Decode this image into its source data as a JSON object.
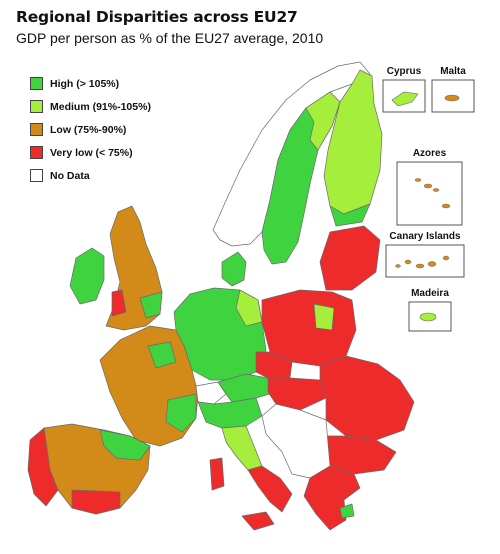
{
  "title": "Regional Disparities across EU27",
  "subtitle": "GDP per person as % of the EU27 average, 2010",
  "legend": [
    {
      "label": "High (> 105%)",
      "color": "#3fd43f"
    },
    {
      "label": "Medium (91%-105%)",
      "color": "#a6ee3c"
    },
    {
      "label": "Low (75%-90%)",
      "color": "#d28a18"
    },
    {
      "label": "Very low (< 75%)",
      "color": "#ee2b2b"
    },
    {
      "label": "No Data",
      "color": "#ffffff"
    }
  ],
  "insets": {
    "cyprus": "Cyprus",
    "malta": "Malta",
    "azores": "Azores",
    "canary": "Canary Islands",
    "madeira": "Madeira"
  },
  "colors": {
    "high": "#3fd43f",
    "medium": "#a6ee3c",
    "low": "#d28a18",
    "very_low": "#ee2b2b",
    "border": "#6a6a6a"
  }
}
